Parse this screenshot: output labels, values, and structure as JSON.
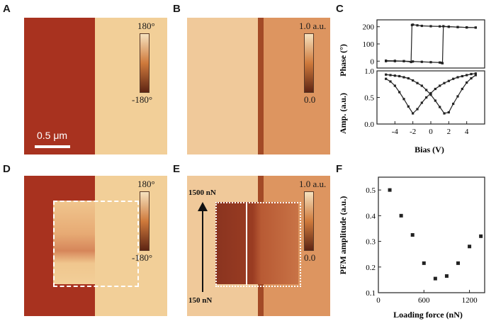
{
  "panels": {
    "A": {
      "label": "A",
      "cbar_top": "180°",
      "cbar_bottom": "-180°",
      "scalebar": "0.5 μm"
    },
    "B": {
      "label": "B",
      "cbar_top": "1.0 a.u.",
      "cbar_bottom": "0.0"
    },
    "C": {
      "label": "C"
    },
    "D": {
      "label": "D",
      "cbar_top": "180°",
      "cbar_bottom": "-180°"
    },
    "E": {
      "label": "E",
      "cbar_top": "1.0 a.u.",
      "cbar_bottom": "0.0",
      "force_top": "1500 nN",
      "force_bottom": "150 nN"
    },
    "F": {
      "label": "F"
    }
  },
  "colors": {
    "dark_domain": "#a8321f",
    "light_domain": "#f2cf98",
    "cbar_top": "#f6e2bf",
    "cbar_mid": "#cf7a3c",
    "cbar_bottom": "#5e2514",
    "axis": "#222222"
  },
  "chart_data": [
    {
      "type": "line",
      "panel": "C-top",
      "xlabel": "",
      "ylabel": "Phase (°)",
      "xlim": [
        -6,
        6
      ],
      "ylim": [
        -40,
        240
      ],
      "yticks": [
        0,
        100,
        200
      ],
      "series": [
        {
          "x": [
            -5,
            -4,
            -3,
            -2.2,
            -2.1,
            -2,
            -1.5,
            -1,
            0,
            1,
            2,
            3,
            4,
            5
          ],
          "y": [
            0,
            0,
            0,
            -5,
            210,
            212,
            208,
            205,
            203,
            202,
            200,
            198,
            196,
            195
          ]
        },
        {
          "x": [
            5,
            4,
            3,
            2,
            1.4,
            1.3,
            1.2,
            1,
            0,
            -1,
            -2,
            -3,
            -4,
            -5
          ],
          "y": [
            195,
            196,
            198,
            200,
            203,
            -12,
            -10,
            -8,
            -6,
            -4,
            -2,
            0,
            2,
            3
          ]
        }
      ]
    },
    {
      "type": "line",
      "panel": "C-bottom",
      "xlabel": "Bias (V)",
      "ylabel": "Amp. (a.u.)",
      "xlim": [
        -6,
        6
      ],
      "ylim": [
        0,
        1
      ],
      "xticks": [
        -4,
        -2,
        0,
        2,
        4
      ],
      "yticks": [
        0.0,
        0.5,
        1.0
      ],
      "series": [
        {
          "x": [
            -5,
            -4.5,
            -4,
            -3.5,
            -3,
            -2.5,
            -2,
            -1.5,
            -1,
            -0.5,
            0,
            0.5,
            1,
            1.5,
            2,
            2.5,
            3,
            3.5,
            4,
            4.5,
            5
          ],
          "y": [
            0.85,
            0.8,
            0.72,
            0.6,
            0.47,
            0.33,
            0.2,
            0.28,
            0.4,
            0.5,
            0.58,
            0.66,
            0.72,
            0.77,
            0.81,
            0.85,
            0.88,
            0.9,
            0.92,
            0.94,
            0.95
          ]
        },
        {
          "x": [
            5,
            4.5,
            4,
            3.5,
            3,
            2.5,
            2,
            1.5,
            1,
            0.5,
            0,
            -0.5,
            -1,
            -1.5,
            -2,
            -2.5,
            -3,
            -3.5,
            -4,
            -4.5,
            -5
          ],
          "y": [
            0.92,
            0.86,
            0.78,
            0.66,
            0.52,
            0.38,
            0.22,
            0.2,
            0.32,
            0.44,
            0.55,
            0.64,
            0.72,
            0.77,
            0.82,
            0.86,
            0.88,
            0.9,
            0.91,
            0.92,
            0.93
          ]
        }
      ]
    },
    {
      "type": "scatter",
      "panel": "F",
      "xlabel": "Loading force (nN)",
      "ylabel": "PFM amplitude (a.u.)",
      "xlim": [
        0,
        1400
      ],
      "ylim": [
        0.1,
        0.55
      ],
      "xticks": [
        0,
        600,
        1200
      ],
      "yticks": [
        0.1,
        0.2,
        0.3,
        0.4,
        0.5
      ],
      "x": [
        150,
        300,
        450,
        600,
        750,
        900,
        1050,
        1200,
        1350
      ],
      "y": [
        0.5,
        0.4,
        0.325,
        0.215,
        0.155,
        0.165,
        0.215,
        0.28,
        0.32
      ]
    }
  ]
}
